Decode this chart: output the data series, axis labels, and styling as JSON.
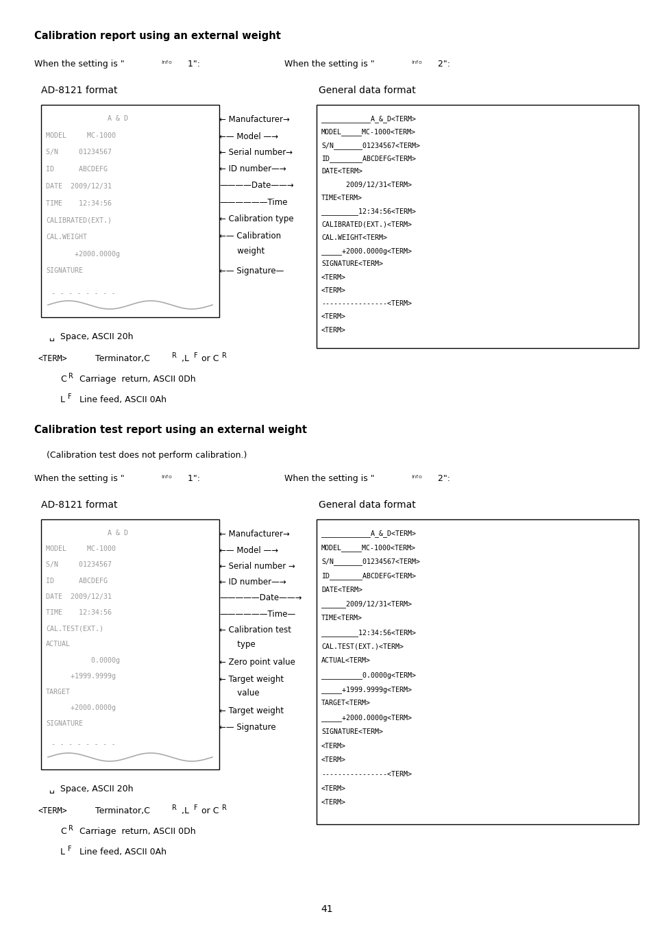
{
  "title1": "Calibration report using an external weight",
  "title2": "Calibration test report using an external weight",
  "subtitle2": "(Calibration test does not perform calibration.)",
  "page_number": "41",
  "background_color": "#ffffff",
  "box1_lines": [
    "               A & D",
    "MODEL     MC-1000",
    "S/N     01234567",
    "ID      ABCDEFG",
    "DATE  2009/12/31",
    "TIME    12:34:56",
    "CALIBRATED(EXT.)",
    "CAL.WEIGHT",
    "       +2000.0000g",
    "SIGNATURE"
  ],
  "box2_lines": [
    "____________A_&_D<TERM>",
    "MODEL_____MC-1000<TERM>",
    "S/N_______01234567<TERM>",
    "ID________ABCDEFG<TERM>",
    "DATE<TERM>",
    "      2009/12/31<TERM>",
    "TIME<TERM>",
    "_________12:34:56<TERM>",
    "CALIBRATED(EXT.)<TERM>",
    "CAL.WEIGHT<TERM>",
    "_____+2000.0000g<TERM>",
    "SIGNATURE<TERM>",
    "<TERM>",
    "<TERM>",
    "----------------<TERM>",
    "<TERM>",
    "<TERM>"
  ],
  "arrows1": [
    [
      "← Manufacturer→",
      false
    ],
    [
      "←— Model —→",
      false
    ],
    [
      "← Serial number→",
      false
    ],
    [
      "← ID number—→",
      false
    ],
    [
      "————Date——→",
      false
    ],
    [
      "——————Time",
      false
    ],
    [
      "← Calibration type",
      false
    ],
    [
      "←— Calibration",
      false
    ],
    [
      "       weight",
      false
    ],
    [
      "←— Signature—",
      false
    ]
  ],
  "box3_lines": [
    "               A & D",
    "MODEL     MC-1000",
    "S/N     01234567",
    "ID      ABCDEFG",
    "DATE  2009/12/31",
    "TIME    12:34:56",
    "CAL.TEST(EXT.)",
    "ACTUAL",
    "           0.0000g",
    "      +1999.9999g",
    "TARGET",
    "      +2000.0000g",
    "SIGNATURE"
  ],
  "box4_lines": [
    "____________A_&_D<TERM>",
    "MODEL_____MC-1000<TERM>",
    "S/N_______01234567<TERM>",
    "ID________ABCDEFG<TERM>",
    "DATE<TERM>",
    "______2009/12/31<TERM>",
    "TIME<TERM>",
    "_________12:34:56<TERM>",
    "CAL.TEST(EXT.)<TERM>",
    "ACTUAL<TERM>",
    "__________0.0000g<TERM>",
    "_____+1999.9999g<TERM>",
    "TARGET<TERM>",
    "_____+2000.0000g<TERM>",
    "SIGNATURE<TERM>",
    "<TERM>",
    "<TERM>",
    "----------------<TERM>",
    "<TERM>",
    "<TERM>"
  ],
  "arrows2": [
    [
      "← Manufacturer→",
      false
    ],
    [
      "←— Model —→",
      false
    ],
    [
      "← Serial number →",
      false
    ],
    [
      "← ID number—→",
      false
    ],
    [
      "—————Date——→",
      false
    ],
    [
      "——————Time—",
      false
    ],
    [
      "← Calibration test",
      false
    ],
    [
      "       type",
      false
    ],
    [
      "← Zero point value",
      false
    ],
    [
      "← Target weight",
      false
    ],
    [
      "       value",
      false
    ],
    [
      "← Target weight",
      false
    ],
    [
      "←— Signature",
      false
    ]
  ]
}
